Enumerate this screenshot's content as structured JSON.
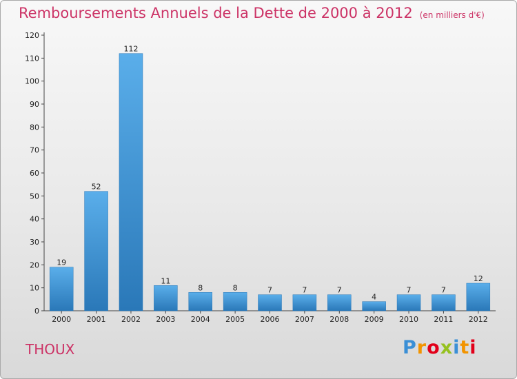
{
  "chart_data": {
    "type": "bar",
    "title": "Remboursements Annuels de la Dette de 2000 à 2012",
    "subtitle": "(en milliers d'€)",
    "categories": [
      "2000",
      "2001",
      "2002",
      "2003",
      "2004",
      "2005",
      "2006",
      "2007",
      "2008",
      "2009",
      "2010",
      "2011",
      "2012"
    ],
    "values": [
      19,
      52,
      112,
      11,
      8,
      8,
      7,
      7,
      7,
      4,
      7,
      7,
      12
    ],
    "ylim": [
      0,
      120
    ],
    "yticks": [
      0,
      10,
      20,
      30,
      40,
      50,
      60,
      70,
      80,
      90,
      100,
      110,
      120
    ],
    "grid": false,
    "bar_color": "#3a8fd6",
    "title_color": "#cc3366"
  },
  "commune": "THOUX",
  "logo": {
    "letters": [
      "P",
      "r",
      "o",
      "x",
      "i",
      "t",
      "i"
    ],
    "colors": [
      "#3a8fd6",
      "#f29400",
      "#e2001a",
      "#95c11f",
      "#3a8fd6",
      "#f29400",
      "#e2001a"
    ]
  }
}
